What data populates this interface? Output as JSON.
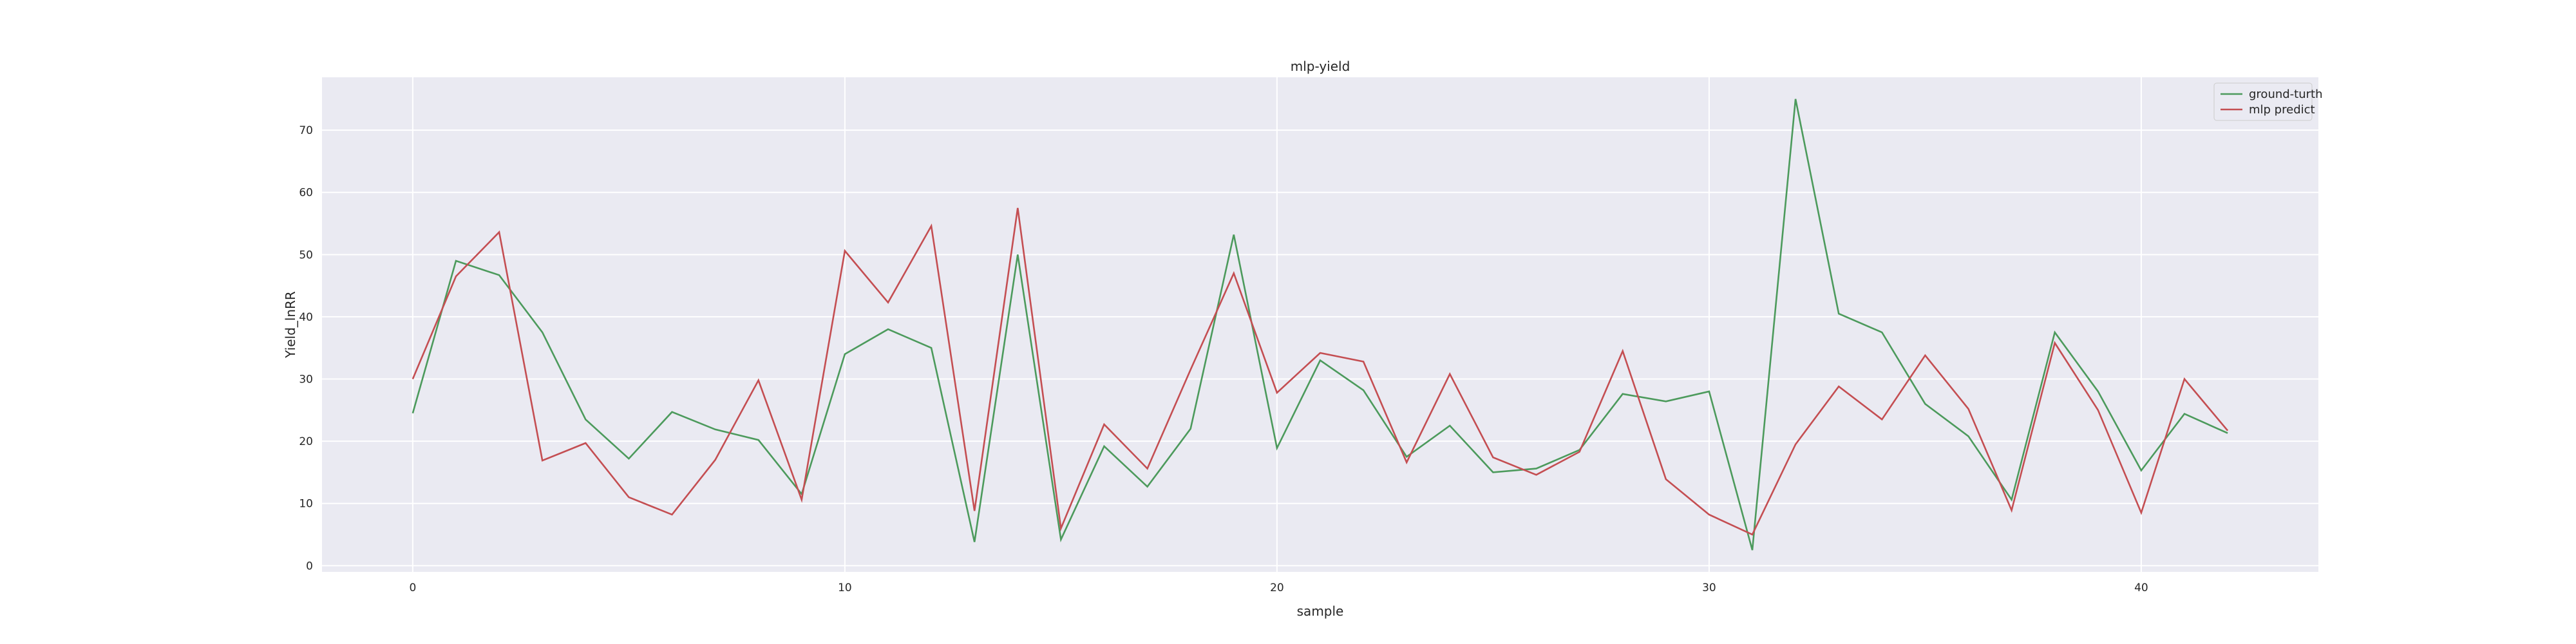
{
  "chart_data": {
    "type": "line",
    "title": "mlp-yield",
    "xlabel": "sample",
    "ylabel": "Yield_lnRR",
    "xlim": [
      -2.1,
      44.1
    ],
    "ylim": [
      -1,
      78.5
    ],
    "xticks": [
      0,
      10,
      20,
      30,
      40
    ],
    "yticks": [
      0,
      10,
      20,
      30,
      40,
      50,
      60,
      70
    ],
    "grid": true,
    "legend_position": "top-right",
    "background_color": "#eaeaf2",
    "grid_color": "#ffffff",
    "x": [
      0,
      1,
      2,
      3,
      4,
      5,
      6,
      7,
      8,
      9,
      10,
      11,
      12,
      13,
      14,
      15,
      16,
      17,
      18,
      19,
      20,
      21,
      22,
      23,
      24,
      25,
      26,
      27,
      28,
      29,
      30,
      31,
      32,
      33,
      34,
      35,
      36,
      37,
      38,
      39,
      40,
      41,
      42
    ],
    "series": [
      {
        "name": "ground-turth",
        "color": "#4c9a5c",
        "values": [
          24.5,
          49,
          46.7,
          37.5,
          23.5,
          17.2,
          24.7,
          21.9,
          20.2,
          11.5,
          34,
          38,
          35,
          3.8,
          50,
          4.2,
          19.2,
          12.7,
          22,
          53.2,
          18.9,
          33,
          28.2,
          17.5,
          22.5,
          15,
          15.6,
          18.6,
          27.6,
          26.4,
          28,
          2.5,
          75,
          40.5,
          37.5,
          26,
          20.8,
          10.6,
          37.5,
          28,
          15.3,
          24.4,
          21.3
        ]
      },
      {
        "name": "mlp predict",
        "color": "#c44e52",
        "values": [
          30,
          46.5,
          53.6,
          16.9,
          19.7,
          11,
          8.2,
          17,
          29.8,
          10.6,
          50.6,
          42.3,
          54.6,
          8.8,
          57.5,
          6,
          22.7,
          15.6,
          31.5,
          47,
          27.8,
          34.2,
          32.8,
          16.6,
          30.8,
          17.4,
          14.6,
          18.3,
          34.5,
          13.9,
          8.2,
          5,
          19.5,
          28.8,
          23.5,
          33.8,
          25.2,
          8.9,
          35.8,
          25,
          8.5,
          30,
          21.7
        ]
      }
    ]
  }
}
